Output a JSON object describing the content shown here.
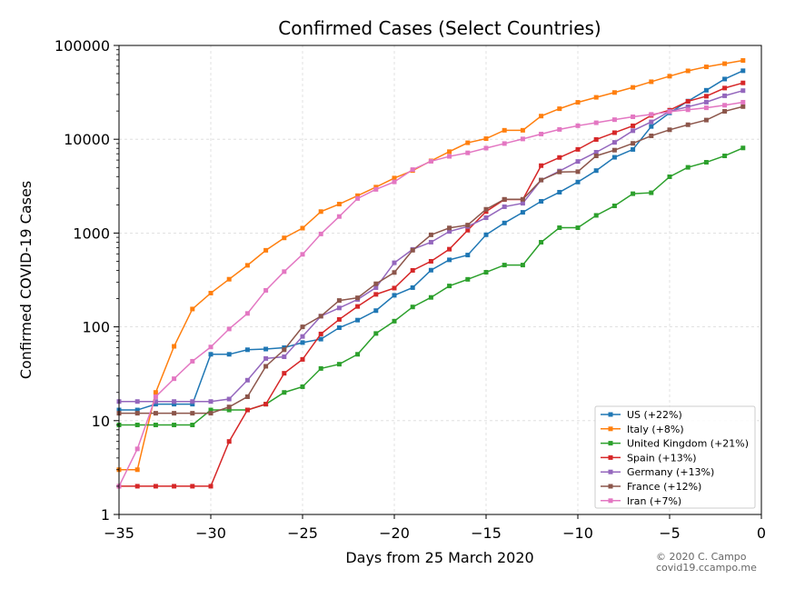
{
  "chart_data": {
    "type": "line",
    "title": "Confirmed Cases (Select Countries)",
    "xlabel": "Days from 25 March 2020",
    "ylabel": "Confirmed COVID-19 Cases",
    "xlim": [
      -35,
      0
    ],
    "ylim": [
      1,
      100000
    ],
    "yscale": "log",
    "grid": true,
    "legend_position": "lower-right",
    "x_ticks": [
      -35,
      -30,
      -25,
      -20,
      -15,
      -10,
      -5,
      0
    ],
    "x_tick_labels": [
      "−35",
      "−30",
      "−25",
      "−20",
      "−15",
      "−10",
      "−5",
      "0"
    ],
    "y_ticks": [
      1,
      10,
      100,
      1000,
      10000,
      100000
    ],
    "y_tick_labels": [
      "1",
      "10",
      "100",
      "1000",
      "10000",
      "100000"
    ],
    "x": [
      -35,
      -34,
      -33,
      -32,
      -31,
      -30,
      -29,
      -28,
      -27,
      -26,
      -25,
      -24,
      -23,
      -22,
      -21,
      -20,
      -19,
      -18,
      -17,
      -16,
      -15,
      -14,
      -13,
      -12,
      -11,
      -10,
      -9,
      -8,
      -7,
      -6,
      -5,
      -4,
      -3,
      -2,
      -1
    ],
    "series": [
      {
        "name": "US (+22%)",
        "color": "#1f77b4",
        "values": [
          13,
          13,
          15,
          15,
          15,
          51,
          51,
          57,
          58,
          60,
          68,
          74,
          98,
          118,
          149,
          217,
          262,
          402,
          518,
          583,
          959,
          1281,
          1663,
          2179,
          2726,
          3499,
          4632,
          6421,
          7786,
          13680,
          19101,
          25493,
          33276,
          43847,
          53740
        ]
      },
      {
        "name": "Italy (+8%)",
        "color": "#ff7f0e",
        "values": [
          3,
          3,
          20,
          62,
          155,
          229,
          322,
          453,
          655,
          888,
          1128,
          1694,
          2036,
          2502,
          3089,
          3858,
          4636,
          5883,
          7375,
          9172,
          10149,
          12462,
          12462,
          17660,
          21157,
          24747,
          27980,
          31506,
          35713,
          41035,
          47021,
          53578,
          59138,
          63927,
          69176
        ]
      },
      {
        "name": "United Kingdom (+21%)",
        "color": "#2ca02c",
        "values": [
          9,
          9,
          9,
          9,
          9,
          13,
          13,
          13,
          15,
          20,
          23,
          36,
          40,
          51,
          85,
          115,
          163,
          206,
          273,
          321,
          382,
          456,
          456,
          798,
          1140,
          1140,
          1543,
          1950,
          2626,
          2689,
          3983,
          5018,
          5683,
          6650,
          8077
        ]
      },
      {
        "name": "Spain (+13%)",
        "color": "#d62728",
        "values": [
          2,
          2,
          2,
          2,
          2,
          2,
          6,
          13,
          15,
          32,
          45,
          84,
          120,
          165,
          222,
          259,
          400,
          500,
          673,
          1073,
          1695,
          2277,
          2277,
          5232,
          6391,
          7798,
          9942,
          11748,
          13910,
          17963,
          20410,
          25374,
          28768,
          35136,
          39885
        ]
      },
      {
        "name": "Germany (+13%)",
        "color": "#9467bd",
        "values": [
          16,
          16,
          16,
          16,
          16,
          16,
          17,
          27,
          46,
          48,
          79,
          130,
          159,
          196,
          262,
          482,
          670,
          799,
          1040,
          1176,
          1457,
          1908,
          2078,
          3675,
          4585,
          5795,
          7272,
          9257,
          12327,
          15320,
          19848,
          22213,
          24873,
          29056,
          32986
        ]
      },
      {
        "name": "France (+12%)",
        "color": "#8c564b",
        "values": [
          12,
          12,
          12,
          12,
          12,
          12,
          14,
          18,
          38,
          57,
          100,
          130,
          191,
          204,
          288,
          380,
          656,
          957,
          1134,
          1217,
          1792,
          2289,
          2289,
          3672,
          4480,
          4513,
          6650,
          7652,
          9043,
          10871,
          12612,
          14282,
          16018,
          19856,
          22304
        ]
      },
      {
        "name": "Iran (+7%)",
        "color": "#e377c2",
        "values": [
          2,
          5,
          18,
          28,
          43,
          61,
          95,
          139,
          245,
          388,
          593,
          978,
          1501,
          2336,
          2922,
          3513,
          4747,
          5823,
          6566,
          7161,
          8042,
          9000,
          10075,
          11364,
          12729,
          13938,
          14991,
          16169,
          17361,
          18407,
          19644,
          20610,
          21638,
          23049,
          24811
        ]
      }
    ]
  },
  "credit": {
    "line1": "© 2020 C. Campo",
    "line2": "covid19.ccampo.me"
  }
}
